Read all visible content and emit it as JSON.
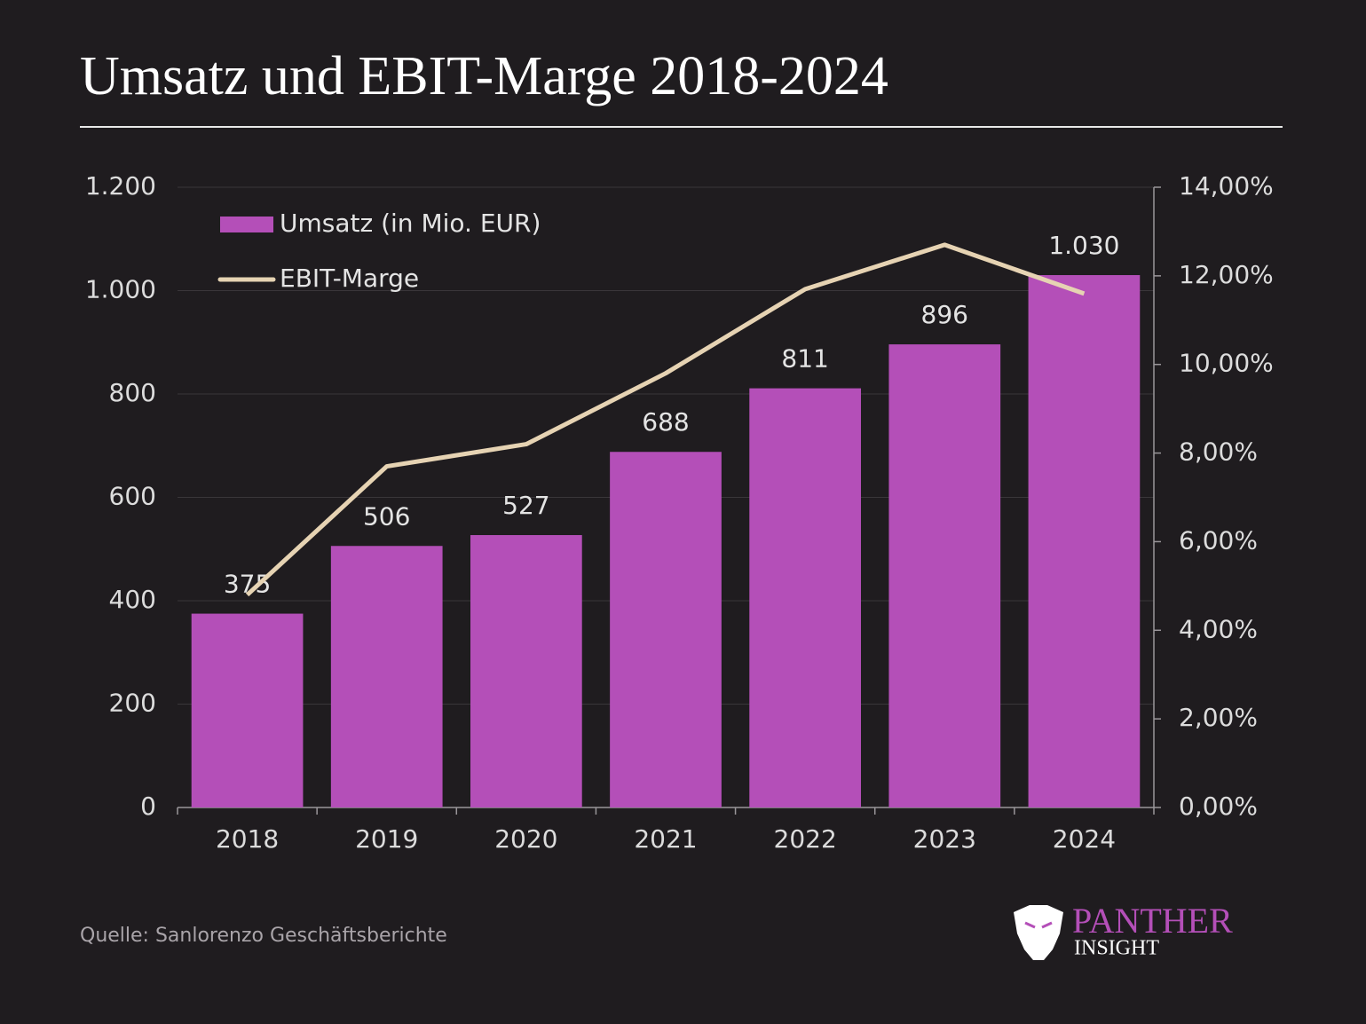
{
  "chart_data": {
    "type": "bar",
    "title": "Umsatz und EBIT-Marge 2018-2024",
    "categories": [
      "2018",
      "2019",
      "2020",
      "2021",
      "2022",
      "2023",
      "2024"
    ],
    "series": [
      {
        "name": "Umsatz (in Mio. EUR)",
        "type": "bar",
        "color": "#b44fb8",
        "values": [
          375,
          506,
          527,
          688,
          811,
          896,
          1030
        ],
        "value_labels": [
          "375",
          "506",
          "527",
          "688",
          "811",
          "896",
          "1.030"
        ]
      },
      {
        "name": "EBIT-Marge",
        "type": "line",
        "axis": "y2",
        "color": "#e6d3b3",
        "values": [
          4.8,
          7.7,
          8.2,
          9.8,
          11.7,
          12.7,
          11.6
        ]
      }
    ],
    "ylim": [
      0,
      1200
    ],
    "yticks": [
      0,
      200,
      400,
      600,
      800,
      {
        "value": 1000,
        "label": "1.000"
      },
      {
        "value": 1200,
        "label": "1.200"
      }
    ],
    "y2lim": [
      0,
      14
    ],
    "y2ticks": [
      {
        "value": 0,
        "label": "0,00%"
      },
      {
        "value": 2,
        "label": "2,00%"
      },
      {
        "value": 4,
        "label": "4,00%"
      },
      {
        "value": 6,
        "label": "6,00%"
      },
      {
        "value": 8,
        "label": "8,00%"
      },
      {
        "value": 10,
        "label": "10,00%"
      },
      {
        "value": 12,
        "label": "12,00%"
      },
      {
        "value": 14,
        "label": "14,00%"
      }
    ],
    "grid": true,
    "legend": "top-left",
    "source": "Quelle: Sanlorenzo Geschäftsberichte"
  },
  "logo": {
    "name": "PANTHER",
    "tagline": "INSIGHT"
  }
}
